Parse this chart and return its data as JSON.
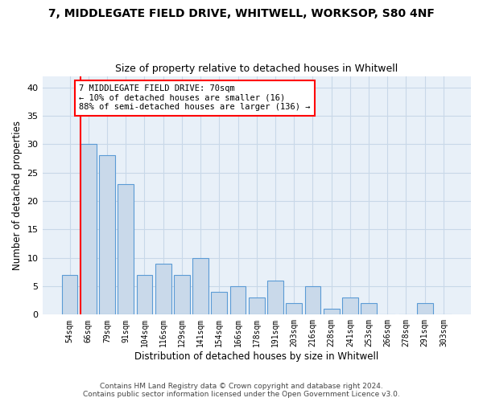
{
  "title": "7, MIDDLEGATE FIELD DRIVE, WHITWELL, WORKSOP, S80 4NF",
  "subtitle": "Size of property relative to detached houses in Whitwell",
  "xlabel": "Distribution of detached houses by size in Whitwell",
  "ylabel": "Number of detached properties",
  "categories": [
    "54sqm",
    "66sqm",
    "79sqm",
    "91sqm",
    "104sqm",
    "116sqm",
    "129sqm",
    "141sqm",
    "154sqm",
    "166sqm",
    "178sqm",
    "191sqm",
    "203sqm",
    "216sqm",
    "228sqm",
    "241sqm",
    "253sqm",
    "266sqm",
    "278sqm",
    "291sqm",
    "303sqm"
  ],
  "values": [
    7,
    30,
    28,
    23,
    7,
    9,
    7,
    10,
    4,
    5,
    3,
    6,
    2,
    5,
    1,
    3,
    2,
    0,
    0,
    2,
    0
  ],
  "bar_color": "#c9d9ea",
  "bar_edge_color": "#5b9bd5",
  "grid_color": "#c8d8e8",
  "background_color": "#e8f0f8",
  "red_line_x": 1,
  "annotation_text": "7 MIDDLEGATE FIELD DRIVE: 70sqm\n← 10% of detached houses are smaller (16)\n88% of semi-detached houses are larger (136) →",
  "ylim": [
    0,
    42
  ],
  "yticks": [
    0,
    5,
    10,
    15,
    20,
    25,
    30,
    35,
    40
  ],
  "footer_line1": "Contains HM Land Registry data © Crown copyright and database right 2024.",
  "footer_line2": "Contains public sector information licensed under the Open Government Licence v3.0."
}
